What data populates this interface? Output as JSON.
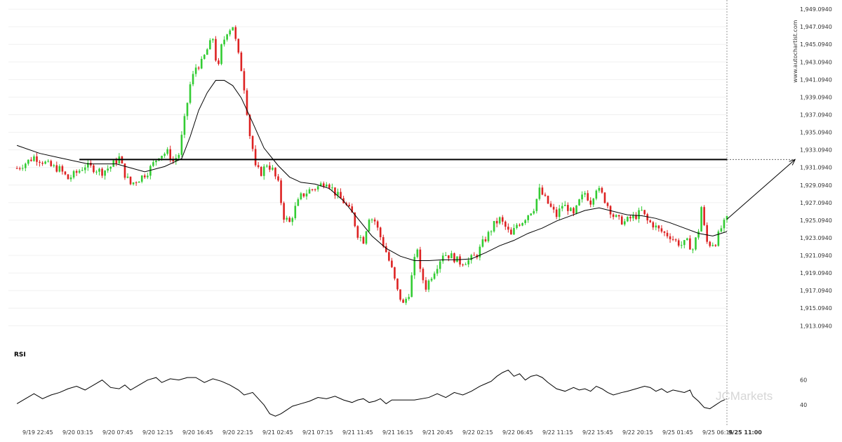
{
  "chart_data": [
    {
      "type": "candlestick",
      "title": "",
      "ylim": [
        1912.0,
        1949.5
      ],
      "y_ticks": [
        "1,949.0940",
        "1,947.0940",
        "1,945.0940",
        "1,943.0940",
        "1,941.0940",
        "1,939.0940",
        "1,937.0940",
        "1,935.0940",
        "1,933.0940",
        "1,931.0940",
        "1,929.0940",
        "1,927.0940",
        "1,925.0940",
        "1,923.0940",
        "1,921.0940",
        "1,919.0940",
        "1,917.0940",
        "1,915.0940",
        "1,913.0940"
      ],
      "x_ticks": [
        "9/19 22:45",
        "9/20 03:15",
        "9/20 07:45",
        "9/20 12:15",
        "9/20 16:45",
        "9/20 22:15",
        "9/21 02:45",
        "9/21 07:15",
        "9/21 11:45",
        "9/21 16:15",
        "9/21 20:45",
        "9/22 02:15",
        "9/22 06:45",
        "9/22 11:15",
        "9/22 15:45",
        "9/22 20:15",
        "9/25 01:45",
        "9/25 06:15",
        "9/25 11:00"
      ],
      "close_path": [
        [
          0,
          1931.0
        ],
        [
          3,
          1931.6
        ],
        [
          6,
          1932.3
        ],
        [
          9,
          1931.8
        ],
        [
          12,
          1931.2
        ],
        [
          15,
          1930.9
        ],
        [
          18,
          1929.8
        ],
        [
          21,
          1930.5
        ],
        [
          24,
          1931.3
        ],
        [
          27,
          1931.0
        ],
        [
          30,
          1930.6
        ],
        [
          33,
          1931.2
        ],
        [
          36,
          1932.2
        ],
        [
          38,
          1930.3
        ],
        [
          40,
          1929.2
        ],
        [
          43,
          1929.8
        ],
        [
          46,
          1930.6
        ],
        [
          48,
          1931.5
        ],
        [
          50,
          1932.5
        ],
        [
          53,
          1932.8
        ],
        [
          55,
          1931.8
        ],
        [
          57,
          1932.6
        ],
        [
          59,
          1936.5
        ],
        [
          61,
          1940.5
        ],
        [
          63,
          1942.5
        ],
        [
          65,
          1943.0
        ],
        [
          67,
          1944.5
        ],
        [
          69,
          1945.8
        ],
        [
          70,
          1943.5
        ],
        [
          71,
          1942.5
        ],
        [
          72,
          1944.8
        ],
        [
          74,
          1946.6
        ],
        [
          76,
          1947.2
        ],
        [
          77,
          1945.5
        ],
        [
          78,
          1943.8
        ],
        [
          79,
          1942.3
        ],
        [
          80,
          1940.2
        ],
        [
          81,
          1937.5
        ],
        [
          82,
          1934.8
        ],
        [
          83,
          1933.2
        ],
        [
          84,
          1931.0
        ],
        [
          86,
          1930.5
        ],
        [
          88,
          1931.5
        ],
        [
          90,
          1930.8
        ],
        [
          92,
          1929.2
        ],
        [
          93,
          1927.2
        ],
        [
          94,
          1925.5
        ],
        [
          96,
          1924.8
        ],
        [
          98,
          1926.5
        ],
        [
          100,
          1927.8
        ],
        [
          103,
          1928.5
        ],
        [
          106,
          1928.9
        ],
        [
          109,
          1929.6
        ],
        [
          112,
          1928.2
        ],
        [
          115,
          1927.2
        ],
        [
          118,
          1925.8
        ],
        [
          120,
          1923.5
        ],
        [
          122,
          1922.8
        ],
        [
          124,
          1925.5
        ],
        [
          126,
          1925.0
        ],
        [
          128,
          1923.2
        ],
        [
          130,
          1921.5
        ],
        [
          132,
          1919.5
        ],
        [
          134,
          1917.0
        ],
        [
          136,
          1915.5
        ],
        [
          138,
          1916.8
        ],
        [
          140,
          1920.5
        ],
        [
          141,
          1922.0
        ],
        [
          142,
          1919.2
        ],
        [
          144,
          1917.5
        ],
        [
          146,
          1918.8
        ],
        [
          148,
          1920.0
        ],
        [
          150,
          1921.3
        ],
        [
          153,
          1921.0
        ],
        [
          156,
          1920.3
        ],
        [
          159,
          1920.5
        ],
        [
          162,
          1921.2
        ],
        [
          164,
          1922.5
        ],
        [
          166,
          1923.5
        ],
        [
          168,
          1924.6
        ],
        [
          170,
          1925.2
        ],
        [
          172,
          1924.3
        ],
        [
          174,
          1923.3
        ],
        [
          176,
          1924.6
        ],
        [
          178,
          1925.0
        ],
        [
          180,
          1925.8
        ],
        [
          182,
          1926.5
        ],
        [
          184,
          1928.5
        ],
        [
          186,
          1927.5
        ],
        [
          188,
          1926.5
        ],
        [
          190,
          1925.6
        ],
        [
          192,
          1926.8
        ],
        [
          194,
          1926.5
        ],
        [
          196,
          1925.6
        ],
        [
          198,
          1927.2
        ],
        [
          200,
          1928.2
        ],
        [
          202,
          1927.2
        ],
        [
          204,
          1928.8
        ],
        [
          206,
          1928.0
        ],
        [
          208,
          1926.8
        ],
        [
          210,
          1925.6
        ],
        [
          212,
          1925.1
        ],
        [
          214,
          1924.9
        ],
        [
          216,
          1925.3
        ],
        [
          218,
          1925.6
        ],
        [
          220,
          1926.1
        ],
        [
          222,
          1925.0
        ],
        [
          224,
          1924.6
        ],
        [
          226,
          1924.0
        ],
        [
          228,
          1923.6
        ],
        [
          230,
          1923.3
        ],
        [
          232,
          1922.7
        ],
        [
          234,
          1922.3
        ],
        [
          236,
          1922.6
        ],
        [
          238,
          1921.8
        ],
        [
          240,
          1924.0
        ],
        [
          241,
          1926.6
        ],
        [
          242,
          1924.3
        ],
        [
          243,
          1922.6
        ],
        [
          244,
          1922.4
        ],
        [
          246,
          1922.6
        ],
        [
          248,
          1924.2
        ],
        [
          250,
          1925.2
        ]
      ],
      "overlay_ma": [
        [
          0,
          1933.6
        ],
        [
          8,
          1932.7
        ],
        [
          15,
          1932.2
        ],
        [
          25,
          1931.5
        ],
        [
          35,
          1931.5
        ],
        [
          45,
          1930.6
        ],
        [
          52,
          1931.2
        ],
        [
          58,
          1932.1
        ],
        [
          61,
          1934.6
        ],
        [
          64,
          1937.6
        ],
        [
          67,
          1939.6
        ],
        [
          70,
          1941.0
        ],
        [
          73,
          1941.0
        ],
        [
          76,
          1940.4
        ],
        [
          79,
          1939.0
        ],
        [
          83,
          1936.2
        ],
        [
          87,
          1933.3
        ],
        [
          92,
          1931.3
        ],
        [
          96,
          1930.0
        ],
        [
          100,
          1929.4
        ],
        [
          105,
          1929.2
        ],
        [
          110,
          1928.7
        ],
        [
          115,
          1927.3
        ],
        [
          120,
          1925.3
        ],
        [
          125,
          1923.3
        ],
        [
          130,
          1921.9
        ],
        [
          135,
          1921.0
        ],
        [
          140,
          1920.5
        ],
        [
          145,
          1920.5
        ],
        [
          150,
          1920.6
        ],
        [
          155,
          1920.6
        ],
        [
          160,
          1920.7
        ],
        [
          165,
          1921.4
        ],
        [
          170,
          1922.2
        ],
        [
          175,
          1922.8
        ],
        [
          180,
          1923.6
        ],
        [
          185,
          1924.2
        ],
        [
          190,
          1925.0
        ],
        [
          195,
          1925.6
        ],
        [
          200,
          1926.2
        ],
        [
          205,
          1926.5
        ],
        [
          210,
          1926.1
        ],
        [
          215,
          1925.7
        ],
        [
          220,
          1925.6
        ],
        [
          225,
          1925.3
        ],
        [
          230,
          1924.8
        ],
        [
          235,
          1924.2
        ],
        [
          240,
          1923.6
        ],
        [
          245,
          1923.3
        ],
        [
          250,
          1923.8
        ]
      ],
      "level": 1932.0,
      "level_start": 22,
      "current_x": 250,
      "projection_target": 1932.0,
      "x_range": [
        -3,
        250
      ],
      "projection_x_max": 274
    },
    {
      "type": "line",
      "title": "RSI",
      "ylim": [
        30,
        75
      ],
      "y_ticks": [
        60,
        40
      ],
      "values": [
        [
          0,
          41
        ],
        [
          3,
          45
        ],
        [
          6,
          49
        ],
        [
          9,
          45
        ],
        [
          12,
          48
        ],
        [
          15,
          50
        ],
        [
          18,
          53
        ],
        [
          21,
          55
        ],
        [
          24,
          52
        ],
        [
          27,
          56
        ],
        [
          30,
          60
        ],
        [
          33,
          54
        ],
        [
          36,
          53
        ],
        [
          38,
          56
        ],
        [
          40,
          52
        ],
        [
          43,
          56
        ],
        [
          46,
          60
        ],
        [
          49,
          62
        ],
        [
          51,
          58
        ],
        [
          54,
          61
        ],
        [
          57,
          60
        ],
        [
          60,
          62
        ],
        [
          63,
          62
        ],
        [
          66,
          58
        ],
        [
          69,
          61
        ],
        [
          72,
          59
        ],
        [
          75,
          56
        ],
        [
          78,
          52
        ],
        [
          80,
          48
        ],
        [
          83,
          50
        ],
        [
          85,
          45
        ],
        [
          87,
          40
        ],
        [
          89,
          33
        ],
        [
          91,
          31
        ],
        [
          93,
          33
        ],
        [
          95,
          36
        ],
        [
          97,
          39
        ],
        [
          100,
          41
        ],
        [
          103,
          43
        ],
        [
          106,
          46
        ],
        [
          109,
          45
        ],
        [
          112,
          47
        ],
        [
          115,
          44
        ],
        [
          118,
          42
        ],
        [
          120,
          44
        ],
        [
          122,
          45
        ],
        [
          124,
          42
        ],
        [
          126,
          43
        ],
        [
          128,
          45
        ],
        [
          130,
          41
        ],
        [
          132,
          44
        ],
        [
          135,
          44
        ],
        [
          140,
          44
        ],
        [
          145,
          46
        ],
        [
          148,
          49
        ],
        [
          151,
          46
        ],
        [
          154,
          50
        ],
        [
          157,
          48
        ],
        [
          160,
          51
        ],
        [
          163,
          55
        ],
        [
          165,
          57
        ],
        [
          167,
          59
        ],
        [
          169,
          63
        ],
        [
          171,
          66
        ],
        [
          173,
          68
        ],
        [
          175,
          63
        ],
        [
          177,
          65
        ],
        [
          179,
          60
        ],
        [
          181,
          63
        ],
        [
          183,
          64
        ],
        [
          185,
          62
        ],
        [
          187,
          58
        ],
        [
          190,
          53
        ],
        [
          193,
          51
        ],
        [
          196,
          54
        ],
        [
          198,
          52
        ],
        [
          200,
          53
        ],
        [
          202,
          51
        ],
        [
          204,
          55
        ],
        [
          206,
          53
        ],
        [
          208,
          50
        ],
        [
          210,
          48
        ],
        [
          213,
          50
        ],
        [
          215,
          51
        ],
        [
          218,
          53
        ],
        [
          221,
          55
        ],
        [
          223,
          54
        ],
        [
          225,
          51
        ],
        [
          227,
          53
        ],
        [
          229,
          50
        ],
        [
          231,
          52
        ],
        [
          233,
          51
        ],
        [
          235,
          50
        ],
        [
          237,
          52
        ],
        [
          238,
          47
        ],
        [
          240,
          43
        ],
        [
          242,
          38
        ],
        [
          244,
          37
        ],
        [
          246,
          40
        ],
        [
          248,
          43
        ],
        [
          250,
          45
        ]
      ],
      "x_range": [
        -3,
        250
      ]
    }
  ],
  "labels": {
    "rsi": "RSI",
    "watermark": "www.autochartist.com",
    "brand": "JCMarkets"
  },
  "colors": {
    "up": "#33cc33",
    "down": "#dd2222",
    "line": "#000000",
    "grid": "#e6e6e6"
  }
}
